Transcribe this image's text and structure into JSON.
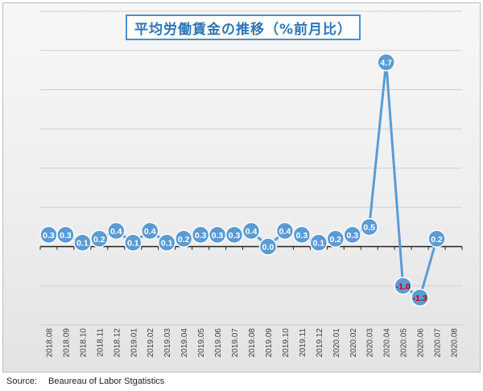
{
  "chart_data": {
    "type": "line",
    "title": "平均労働賃金の推移（%前月比）",
    "categories": [
      "2018.08",
      "2018.09",
      "2018.10",
      "2018.11",
      "2018.12",
      "2019.01",
      "2019.02",
      "2019.03",
      "2019.04",
      "2019.05",
      "2019.06",
      "2019.07",
      "2019.08",
      "2019.09",
      "2019.10",
      "2019.11",
      "2019.12",
      "2020.01",
      "2020.02",
      "2020.03",
      "2020.04",
      "2020.05",
      "2020.06",
      "2020.07",
      "2020.08"
    ],
    "values": [
      0.3,
      0.3,
      0.1,
      0.2,
      0.4,
      0.1,
      0.4,
      0.1,
      0.2,
      0.3,
      0.3,
      0.3,
      0.4,
      0.0,
      0.4,
      0.3,
      0.1,
      0.2,
      0.3,
      0.5,
      4.7,
      -1.0,
      -1.3,
      0.2,
      null
    ],
    "data_labels": [
      "0.3",
      "0.3",
      "0.1",
      "0.2",
      "0.4",
      "0.1",
      "0.4",
      "0.1",
      "0.2",
      "0.3",
      "0.3",
      "0.3",
      "0.4",
      "0.0",
      "0.4",
      "0.3",
      "0.1",
      "0.2",
      "0.3",
      "0.5",
      "4.7",
      "-1.0",
      "-1.3",
      "0.2",
      ""
    ],
    "ylim": [
      -2,
      6
    ],
    "grid": true,
    "legend": "none",
    "xlabel": "",
    "ylabel": "",
    "colors": {
      "line": "#5b9bd5",
      "marker_stroke": "#ffffff",
      "label_positive": "#ffffff",
      "label_negative": "#c00000",
      "title": "#2e75b6"
    }
  },
  "source": {
    "label": "Source:",
    "text": "Beaureau of Labor Stgatistics"
  }
}
